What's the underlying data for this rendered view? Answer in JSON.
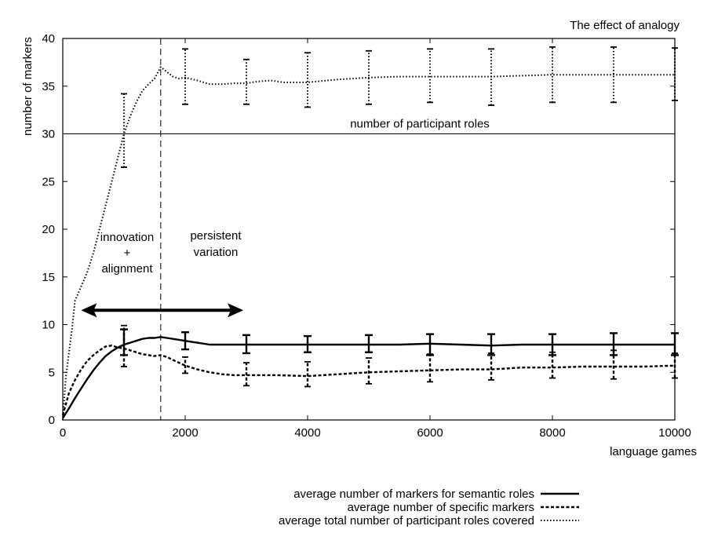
{
  "chart_data": {
    "type": "line",
    "title": "The effect of analogy",
    "xlabel": "language games",
    "ylabel": "number of markers",
    "xlim": [
      0,
      10000
    ],
    "ylim": [
      0,
      40
    ],
    "xticks": [
      0,
      2000,
      4000,
      6000,
      8000,
      10000
    ],
    "yticks": [
      0,
      5,
      10,
      15,
      20,
      25,
      30,
      35,
      40
    ],
    "grid": false,
    "legend_position": "bottom-right",
    "series": [
      {
        "name": "average number of markers for semantic roles",
        "style": "solid",
        "x": [
          0,
          100,
          200,
          300,
          400,
          500,
          600,
          700,
          800,
          900,
          1000,
          1100,
          1200,
          1300,
          1400,
          1500,
          1600,
          1700,
          1800,
          1900,
          2000,
          2200,
          2400,
          2600,
          2800,
          3000,
          3500,
          4000,
          4500,
          5000,
          5500,
          6000,
          6500,
          7000,
          7500,
          8000,
          8500,
          9000,
          9500,
          10000
        ],
        "values": [
          0.2,
          1.2,
          2.3,
          3.3,
          4.3,
          5.2,
          6.0,
          6.7,
          7.2,
          7.6,
          7.9,
          8.1,
          8.3,
          8.5,
          8.6,
          8.6,
          8.7,
          8.6,
          8.5,
          8.4,
          8.3,
          8.1,
          7.9,
          7.9,
          7.9,
          7.9,
          7.9,
          7.9,
          7.9,
          7.9,
          7.9,
          8.0,
          7.9,
          7.8,
          7.9,
          7.9,
          7.9,
          7.9,
          7.9,
          7.9
        ],
        "errorbars": [
          {
            "x": 1000,
            "low": 6.8,
            "high": 9.5
          },
          {
            "x": 2000,
            "low": 7.4,
            "high": 9.2
          },
          {
            "x": 3000,
            "low": 7.0,
            "high": 8.9
          },
          {
            "x": 4000,
            "low": 7.1,
            "high": 8.8
          },
          {
            "x": 5000,
            "low": 7.1,
            "high": 8.9
          },
          {
            "x": 6000,
            "low": 6.8,
            "high": 9.0
          },
          {
            "x": 7000,
            "low": 6.8,
            "high": 9.0
          },
          {
            "x": 8000,
            "low": 6.8,
            "high": 9.0
          },
          {
            "x": 9000,
            "low": 6.8,
            "high": 9.1
          },
          {
            "x": 10000,
            "low": 6.8,
            "high": 9.1
          }
        ]
      },
      {
        "name": "average number of specific markers",
        "style": "dashed",
        "x": [
          0,
          100,
          200,
          300,
          400,
          500,
          600,
          700,
          800,
          900,
          1000,
          1100,
          1200,
          1300,
          1400,
          1500,
          1600,
          1700,
          1800,
          1900,
          2000,
          2200,
          2400,
          2600,
          2800,
          3000,
          3500,
          4000,
          4500,
          5000,
          5500,
          6000,
          6500,
          7000,
          7500,
          8000,
          8500,
          9000,
          9500,
          10000
        ],
        "values": [
          0.5,
          2.8,
          4.2,
          5.3,
          6.2,
          6.8,
          7.3,
          7.7,
          7.8,
          7.6,
          7.5,
          7.3,
          7.1,
          6.9,
          6.8,
          6.7,
          6.8,
          6.6,
          6.3,
          6.0,
          5.7,
          5.3,
          5.0,
          4.8,
          4.7,
          4.7,
          4.7,
          4.6,
          4.8,
          5.0,
          5.1,
          5.2,
          5.3,
          5.3,
          5.5,
          5.5,
          5.6,
          5.6,
          5.6,
          5.7
        ],
        "errorbars": [
          {
            "x": 1000,
            "low": 5.6,
            "high": 9.9
          },
          {
            "x": 2000,
            "low": 4.9,
            "high": 6.6
          },
          {
            "x": 3000,
            "low": 3.6,
            "high": 6.0
          },
          {
            "x": 4000,
            "low": 3.5,
            "high": 6.1
          },
          {
            "x": 5000,
            "low": 3.8,
            "high": 6.5
          },
          {
            "x": 6000,
            "low": 4.0,
            "high": 6.9
          },
          {
            "x": 7000,
            "low": 4.2,
            "high": 7.0
          },
          {
            "x": 8000,
            "low": 4.4,
            "high": 7.1
          },
          {
            "x": 9000,
            "low": 4.3,
            "high": 7.3
          },
          {
            "x": 10000,
            "low": 4.4,
            "high": 7.0
          }
        ]
      },
      {
        "name": "average total number of participant roles covered",
        "style": "dotted",
        "x": [
          0,
          50,
          100,
          150,
          200,
          300,
          400,
          500,
          600,
          700,
          800,
          900,
          1000,
          1100,
          1200,
          1300,
          1400,
          1500,
          1600,
          1700,
          1800,
          1900,
          2000,
          2200,
          2400,
          2600,
          2800,
          3000,
          3200,
          3400,
          3600,
          3800,
          4000,
          4500,
          5000,
          5500,
          6000,
          6500,
          7000,
          7500,
          8000,
          8500,
          9000,
          9500,
          10000
        ],
        "values": [
          0,
          4.5,
          7.0,
          9.5,
          12.5,
          14.0,
          15.5,
          17.5,
          20.0,
          22.5,
          25.0,
          27.5,
          30.0,
          31.8,
          33.3,
          34.5,
          35.2,
          35.8,
          37.0,
          36.5,
          36.0,
          35.8,
          35.9,
          35.6,
          35.2,
          35.2,
          35.3,
          35.3,
          35.5,
          35.6,
          35.4,
          35.4,
          35.4,
          35.7,
          35.9,
          36.0,
          36.0,
          36.0,
          36.0,
          36.1,
          36.2,
          36.2,
          36.2,
          36.2,
          36.2
        ],
        "errorbars": [
          {
            "x": 1000,
            "low": 26.5,
            "high": 34.2
          },
          {
            "x": 2000,
            "low": 33.1,
            "high": 38.9
          },
          {
            "x": 3000,
            "low": 33.1,
            "high": 37.8
          },
          {
            "x": 4000,
            "low": 32.8,
            "high": 38.5
          },
          {
            "x": 5000,
            "low": 33.1,
            "high": 38.7
          },
          {
            "x": 6000,
            "low": 33.3,
            "high": 38.9
          },
          {
            "x": 7000,
            "low": 33.0,
            "high": 38.9
          },
          {
            "x": 8000,
            "low": 33.3,
            "high": 39.1
          },
          {
            "x": 9000,
            "low": 33.3,
            "high": 39.1
          },
          {
            "x": 10000,
            "low": 33.5,
            "high": 39.0
          }
        ]
      }
    ],
    "reference_lines": [
      {
        "orientation": "horizontal",
        "y": 30,
        "label": "number of participant roles"
      },
      {
        "orientation": "vertical",
        "x": 1600,
        "style": "dashed"
      }
    ],
    "annotations": [
      {
        "text_lines": [
          "innovation",
          "+",
          "alignment"
        ]
      },
      {
        "text_lines": [
          "persistent",
          "variation"
        ]
      }
    ],
    "arrow": {
      "x_from": 300,
      "x_to": 2950,
      "y": 11.5
    }
  }
}
